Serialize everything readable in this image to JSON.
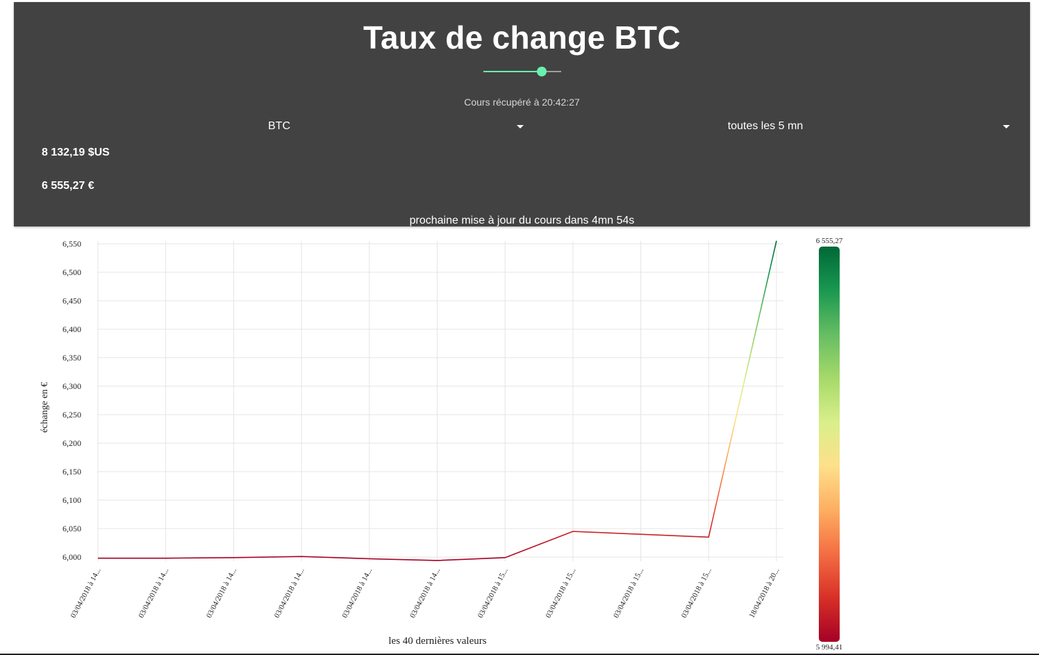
{
  "header": {
    "title": "Taux de change BTC",
    "retrieved_text": "Cours récupéré à 20:42:27",
    "slider_value_pct": 75,
    "currency_select": {
      "value": "BTC"
    },
    "interval_select": {
      "value": "toutes les 5 mn"
    },
    "price_usd": "8 132,19 $US",
    "price_eur": "6 555,27 €",
    "next_update_text": "prochaine mise à jour du cours dans 4mn 54s"
  },
  "colors": {
    "header_bg": "#424242",
    "accent": "#69f0ae",
    "gradient": [
      "#a50026",
      "#d73027",
      "#f46d43",
      "#fdae61",
      "#fee08b",
      "#d9ef8b",
      "#a6d96a",
      "#66bd63",
      "#1a9850",
      "#006837"
    ]
  },
  "chart_data": {
    "type": "line",
    "title": "",
    "xlabel": "les 40 dernières valeurs",
    "ylabel": "échange en €",
    "ylim": [
      6000,
      6550
    ],
    "yticks": [
      "6,000",
      "6,050",
      "6,100",
      "6,150",
      "6,200",
      "6,250",
      "6,300",
      "6,350",
      "6,400",
      "6,450",
      "6,500",
      "6,550"
    ],
    "categories": [
      "03/04/2018 à 14...",
      "03/04/2018 à 14...",
      "03/04/2018 à 14...",
      "03/04/2018 à 14...",
      "03/04/2018 à 14...",
      "03/04/2018 à 14...",
      "03/04/2018 à 15...",
      "03/04/2018 à 15...",
      "03/04/2018 à 15...",
      "03/04/2018 à 15...",
      "18/04/2018 à 20..."
    ],
    "values": [
      5998,
      5998,
      5999,
      6001,
      5997,
      5994,
      5999,
      6045,
      6040,
      6035,
      6555.27
    ],
    "legend": {
      "max_label": "6 555,27",
      "min_label": "5 994,41",
      "max": 6555.27,
      "min": 5994.41
    }
  }
}
